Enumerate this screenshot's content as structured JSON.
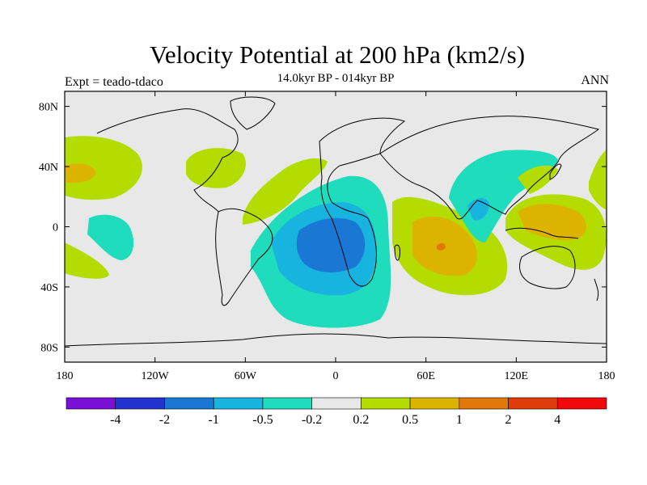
{
  "title": "Velocity Potential at 200 hPa (km2/s)",
  "subtitle": "14.0kyr BP - 014kyr BP",
  "left_label": "Expt = teado-tdaco",
  "right_label": "ANN",
  "lat_ticks": [
    "80N",
    "40N",
    "0",
    "40S",
    "80S"
  ],
  "lon_ticks": [
    "180",
    "120W",
    "60W",
    "0",
    "60E",
    "120E",
    "180"
  ],
  "colorbar": {
    "labels": [
      "-4",
      "-2",
      "-1",
      "-0.5",
      "-0.2",
      "0.2",
      "0.5",
      "1",
      "2",
      "4"
    ],
    "colors": [
      "#7a10d8",
      "#2233d0",
      "#1a78d4",
      "#18b4e0",
      "#1edcbc",
      "#e8e8e8",
      "#b4dc00",
      "#dcb400",
      "#e0780a",
      "#e03c0a",
      "#f00a0a"
    ]
  },
  "colors": {
    "ocean_background": "#e8e8e8",
    "coastline": "#000000"
  },
  "chart_data": {
    "type": "filled-contour-map",
    "title": "Velocity Potential at 200 hPa (km2/s)",
    "subtitle": "14.0kyr BP - 014kyr BP",
    "projection": "cylindrical equidistant",
    "lon_range": [
      -180,
      180
    ],
    "lat_range": [
      -90,
      90
    ],
    "contour_levels": [
      -4,
      -2,
      -1,
      -0.5,
      -0.2,
      0.2,
      0.5,
      1,
      2,
      4
    ],
    "features": [
      {
        "name": "negative center South Atlantic",
        "lon": -18,
        "lat": -15,
        "min_level": -1
      },
      {
        "name": "positive center western Indian Ocean",
        "lon": 68,
        "lat": -12,
        "max_level": 2
      },
      {
        "name": "positive center western Pacific",
        "lon": 140,
        "lat": 5,
        "max_level": 1
      },
      {
        "name": "positive center North Pacific",
        "lon": -170,
        "lat": 40,
        "max_level": 1
      }
    ]
  }
}
